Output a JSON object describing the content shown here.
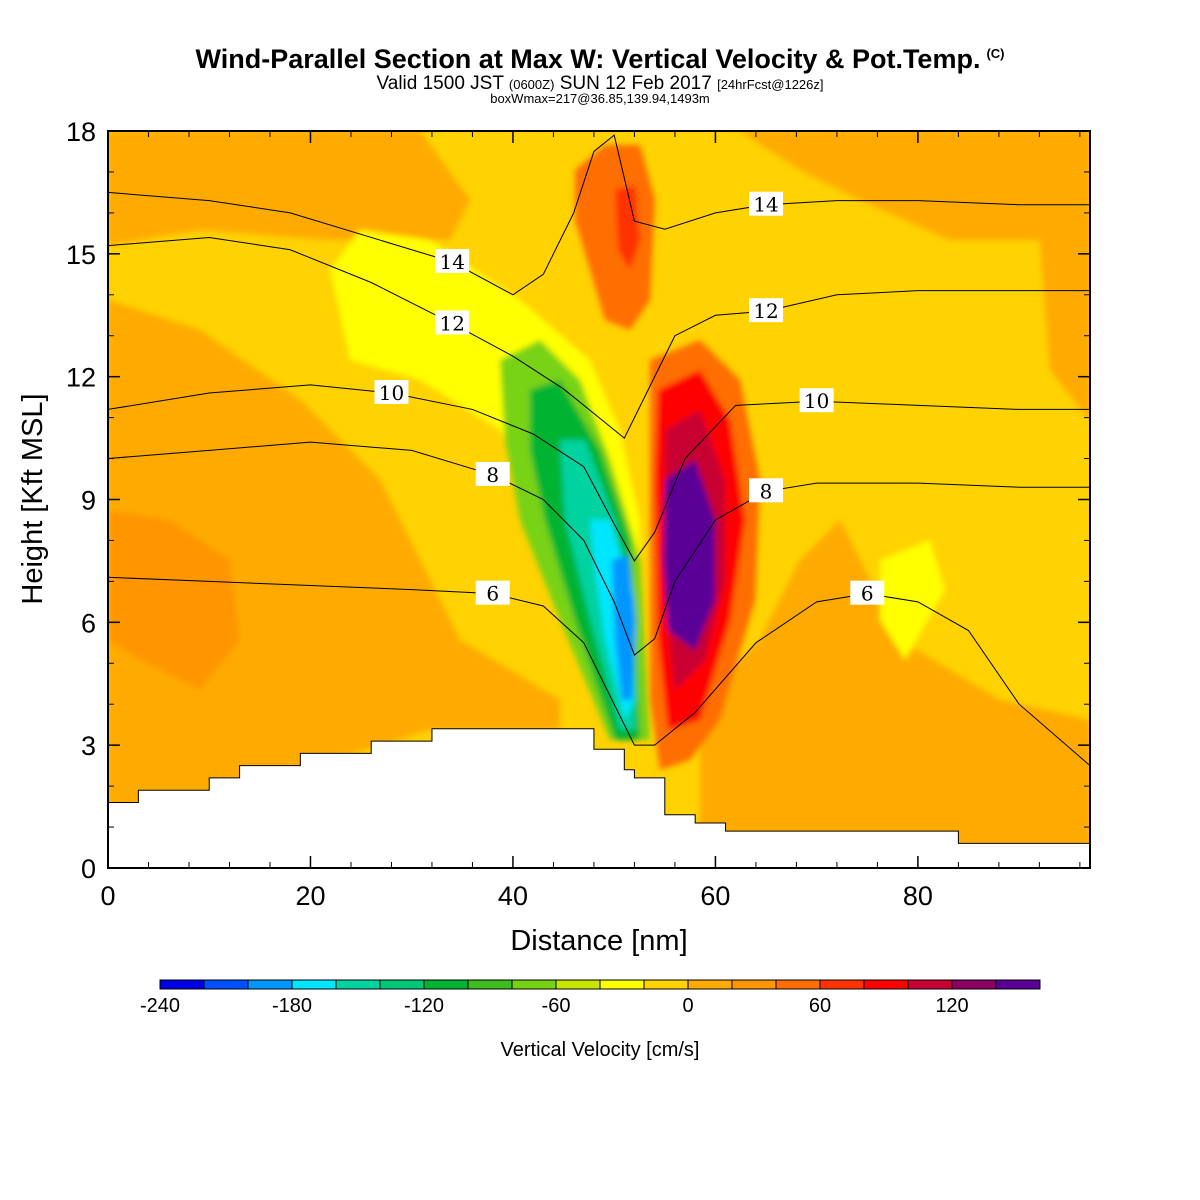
{
  "titles": {
    "main": "Wind-Parallel Section at Max W: Vertical Velocity & Pot.Temp.",
    "copyright": "(C)",
    "valid_pre": "Valid 1500 JST ",
    "valid_z": "(0600Z)",
    "valid_date": " SUN 12 Feb 2017 ",
    "valid_fcst": "[24hrFcst@1226z]",
    "box": "boxWmax=217@36.85,139.94,1493m"
  },
  "chart_data": {
    "type": "heatmap",
    "xlabel": "Distance [nm]",
    "ylabel": "Height [Kft MSL]",
    "xlim": [
      0,
      97
    ],
    "ylim": [
      0,
      18
    ],
    "x_ticks": [
      "0",
      "20",
      "40",
      "60",
      "80"
    ],
    "y_ticks": [
      "0",
      "3",
      "6",
      "9",
      "12",
      "15",
      "18"
    ],
    "colorbar": {
      "label": "Vertical Velocity [cm/s]",
      "tick_labels": [
        "-240",
        "-180",
        "-120",
        "-60",
        "0",
        "60",
        "120"
      ],
      "levels": [
        -240,
        -220,
        -200,
        -180,
        -160,
        -140,
        -120,
        -100,
        -80,
        -60,
        -40,
        -20,
        0,
        20,
        40,
        60,
        80,
        100,
        120,
        140,
        160
      ],
      "colors": [
        "#0000e6",
        "#0050ff",
        "#0096ff",
        "#00e6ff",
        "#00d2a0",
        "#00c87a",
        "#00b432",
        "#3cbe1e",
        "#78d214",
        "#c8e600",
        "#ffff00",
        "#ffd200",
        "#ffaa00",
        "#ff9600",
        "#ff6e00",
        "#ff3200",
        "#ff0000",
        "#c80032",
        "#8c0064",
        "#5a0096"
      ]
    },
    "theta_contours": [
      {
        "label": "6",
        "x": [
          0,
          10,
          20,
          30,
          38,
          43,
          47,
          50,
          52,
          54,
          58,
          64,
          70,
          75,
          80,
          85,
          90,
          97
        ],
        "y": [
          7.1,
          7.0,
          6.9,
          6.8,
          6.7,
          6.4,
          5.5,
          4.0,
          3.0,
          3.0,
          3.8,
          5.5,
          6.5,
          6.7,
          6.5,
          5.8,
          4.0,
          2.5
        ]
      },
      {
        "label": "8",
        "x": [
          0,
          10,
          20,
          30,
          38,
          43,
          47,
          50,
          52,
          54,
          56,
          60,
          65,
          70,
          80,
          90,
          97
        ],
        "y": [
          10.0,
          10.2,
          10.4,
          10.2,
          9.6,
          9.0,
          8.0,
          6.5,
          5.2,
          5.6,
          7.0,
          8.5,
          9.2,
          9.4,
          9.4,
          9.3,
          9.3
        ]
      },
      {
        "label": "10",
        "x": [
          0,
          10,
          20,
          28,
          36,
          42,
          47,
          50,
          52,
          54,
          57,
          62,
          70,
          80,
          90,
          97
        ],
        "y": [
          11.2,
          11.6,
          11.8,
          11.6,
          11.2,
          10.6,
          9.8,
          8.4,
          7.5,
          8.2,
          10.0,
          11.3,
          11.4,
          11.3,
          11.2,
          11.2
        ]
      },
      {
        "label": "12",
        "x": [
          0,
          10,
          18,
          26,
          34,
          40,
          45,
          48,
          51,
          53,
          56,
          60,
          65,
          72,
          80,
          90,
          97
        ],
        "y": [
          15.2,
          15.4,
          15.1,
          14.3,
          13.3,
          12.5,
          11.7,
          11.1,
          10.5,
          11.5,
          13.0,
          13.5,
          13.6,
          14.0,
          14.1,
          14.1,
          14.1
        ]
      },
      {
        "label": "14",
        "x": [
          0,
          10,
          18,
          26,
          34,
          40,
          43,
          46,
          48,
          50,
          52,
          55,
          60,
          65,
          72,
          80,
          90,
          97
        ],
        "y": [
          16.5,
          16.3,
          16.0,
          15.4,
          14.8,
          14.0,
          14.5,
          16.0,
          17.5,
          17.9,
          15.8,
          15.6,
          16.0,
          16.2,
          16.3,
          16.3,
          16.2,
          16.2
        ]
      }
    ],
    "terrain_kft": [
      [
        0,
        1.6
      ],
      [
        3,
        1.9
      ],
      [
        10,
        2.2
      ],
      [
        13,
        2.5
      ],
      [
        19,
        2.8
      ],
      [
        26,
        3.1
      ],
      [
        32,
        3.4
      ],
      [
        48,
        2.9
      ],
      [
        51,
        2.4
      ],
      [
        52,
        2.2
      ],
      [
        55,
        1.3
      ],
      [
        58,
        1.1
      ],
      [
        61,
        0.9
      ],
      [
        84,
        0.6
      ],
      [
        97,
        0.6
      ]
    ]
  }
}
